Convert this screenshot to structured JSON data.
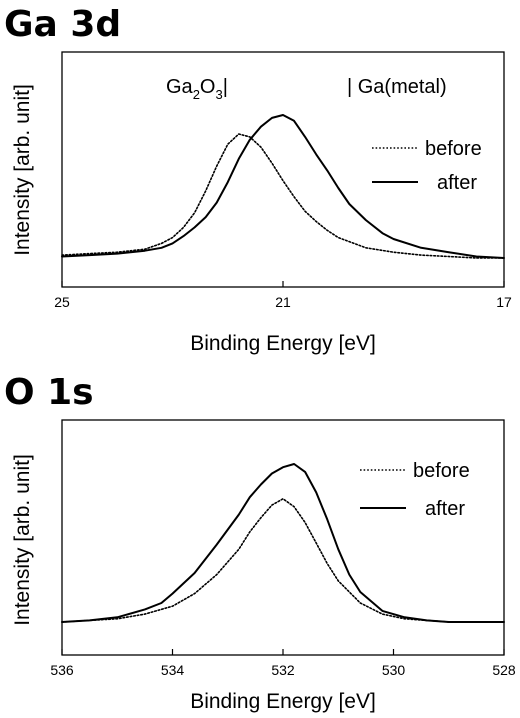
{
  "chart_data": [
    {
      "type": "line",
      "title": "Ga 3d",
      "xlabel": "Binding Energy [eV]",
      "ylabel": "Intensity [arb. unit]",
      "xlim": [
        25,
        17
      ],
      "x_reversed": true,
      "x_ticks": [
        25,
        21,
        17
      ],
      "x_tick_labels": [
        "25",
        "21",
        "17"
      ],
      "ylim": [
        0,
        1.1
      ],
      "y_ticks": [],
      "grid": false,
      "legend_position": "right",
      "annotations": [
        {
          "text_main": "Ga",
          "sub": "2",
          "mid": "O",
          "sub2": "3",
          "suffix": "|",
          "x": 22.45
        },
        {
          "text": "| Ga(metal)",
          "x": 19.6
        }
      ],
      "series": [
        {
          "name": "before",
          "style": "dotted",
          "x": [
            25.0,
            24.5,
            24.0,
            23.5,
            23.2,
            23.0,
            22.8,
            22.6,
            22.4,
            22.2,
            22.0,
            21.8,
            21.6,
            21.4,
            21.2,
            21.0,
            20.8,
            20.6,
            20.4,
            20.2,
            20.0,
            19.5,
            19.0,
            18.5,
            18.0,
            17.5,
            17.0
          ],
          "values": [
            0.02,
            0.03,
            0.04,
            0.06,
            0.1,
            0.14,
            0.21,
            0.31,
            0.46,
            0.63,
            0.78,
            0.85,
            0.83,
            0.76,
            0.65,
            0.53,
            0.42,
            0.32,
            0.25,
            0.19,
            0.14,
            0.07,
            0.04,
            0.02,
            0.01,
            0.0,
            0.0
          ]
        },
        {
          "name": "after",
          "style": "solid",
          "x": [
            25.0,
            24.5,
            24.0,
            23.5,
            23.2,
            23.0,
            22.8,
            22.6,
            22.4,
            22.2,
            22.0,
            21.8,
            21.6,
            21.4,
            21.2,
            21.0,
            20.8,
            20.6,
            20.4,
            20.2,
            20.0,
            19.8,
            19.5,
            19.2,
            19.0,
            18.5,
            18.0,
            17.5,
            17.0
          ],
          "values": [
            0.01,
            0.02,
            0.03,
            0.05,
            0.07,
            0.1,
            0.15,
            0.21,
            0.28,
            0.38,
            0.52,
            0.68,
            0.81,
            0.9,
            0.96,
            0.98,
            0.94,
            0.83,
            0.71,
            0.6,
            0.48,
            0.37,
            0.26,
            0.17,
            0.13,
            0.07,
            0.04,
            0.01,
            0.0
          ]
        }
      ]
    },
    {
      "type": "line",
      "title": "O 1s",
      "xlabel": "Binding Energy [eV]",
      "ylabel": "Intensity [arb. unit]",
      "xlim": [
        536,
        528
      ],
      "x_reversed": true,
      "x_ticks": [
        536,
        534,
        532,
        530,
        528
      ],
      "x_tick_labels": [
        "536",
        "534",
        "532",
        "530",
        "528"
      ],
      "ylim": [
        0,
        1.12
      ],
      "y_ticks": [],
      "grid": false,
      "legend_position": "top-right",
      "series": [
        {
          "name": "before",
          "style": "dotted",
          "x": [
            536.0,
            535.5,
            535.0,
            534.5,
            534.0,
            533.6,
            533.2,
            532.8,
            532.6,
            532.4,
            532.2,
            532.0,
            531.8,
            531.6,
            531.4,
            531.2,
            531.0,
            530.6,
            530.2,
            529.8,
            529.4,
            529.0,
            528.5,
            528.0
          ],
          "values": [
            0.0,
            0.01,
            0.02,
            0.05,
            0.1,
            0.18,
            0.3,
            0.46,
            0.57,
            0.66,
            0.74,
            0.78,
            0.73,
            0.63,
            0.5,
            0.37,
            0.26,
            0.12,
            0.05,
            0.02,
            0.01,
            0.0,
            0.0,
            0.0
          ]
        },
        {
          "name": "after",
          "style": "solid",
          "x": [
            536.0,
            535.5,
            535.0,
            534.5,
            534.2,
            534.0,
            533.6,
            533.2,
            532.8,
            532.6,
            532.4,
            532.2,
            532.0,
            531.8,
            531.6,
            531.4,
            531.2,
            531.0,
            530.8,
            530.6,
            530.2,
            529.8,
            529.4,
            529.0,
            528.5,
            528.0
          ],
          "values": [
            0.0,
            0.01,
            0.03,
            0.08,
            0.12,
            0.18,
            0.31,
            0.49,
            0.68,
            0.79,
            0.87,
            0.94,
            0.98,
            1.0,
            0.95,
            0.82,
            0.65,
            0.46,
            0.3,
            0.19,
            0.07,
            0.03,
            0.01,
            0.0,
            0.0,
            0.0
          ]
        }
      ]
    }
  ]
}
